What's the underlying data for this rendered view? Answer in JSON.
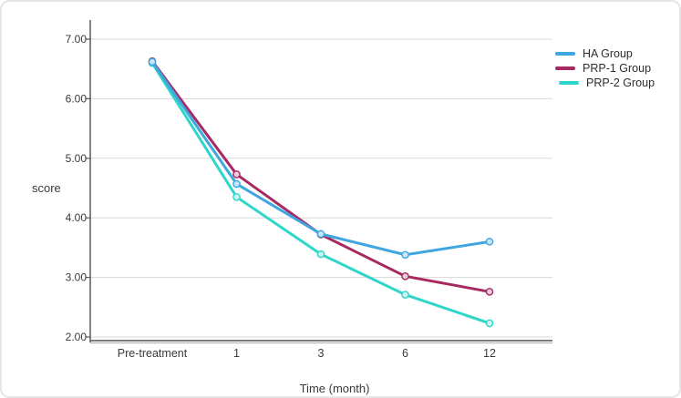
{
  "chart_data": {
    "type": "line",
    "title": "",
    "xlabel": "Time (month)",
    "ylabel": "score",
    "categories": [
      "Pre-treatment",
      "1",
      "3",
      "6",
      "12"
    ],
    "yticks": [
      "2.00",
      "3.00",
      "4.00",
      "5.00",
      "6.00",
      "7.00"
    ],
    "ylim": [
      2.0,
      7.3
    ],
    "grid": true,
    "legend_position": "top-right",
    "series": [
      {
        "name": "HA Group",
        "color": "#3FA6E0",
        "marker_fill": "#C9E6F8",
        "values": [
          6.62,
          4.57,
          3.73,
          3.38,
          3.6
        ]
      },
      {
        "name": "PRP-1 Group",
        "color": "#A62A61",
        "marker_fill": "#EBCCDD",
        "values": [
          6.63,
          4.73,
          3.72,
          3.02,
          2.76
        ]
      },
      {
        "name": "PRP-2 Group",
        "color": "#2ED6C9",
        "marker_fill": "#CDF5F1",
        "values": [
          6.6,
          4.35,
          3.39,
          2.71,
          2.23
        ]
      }
    ],
    "colors": {
      "grid": "#d8d8d8",
      "axis": "#5a5a5a",
      "axis_bottom_light": "#a8a8a8",
      "tick_text": "#3a3a3a"
    }
  }
}
